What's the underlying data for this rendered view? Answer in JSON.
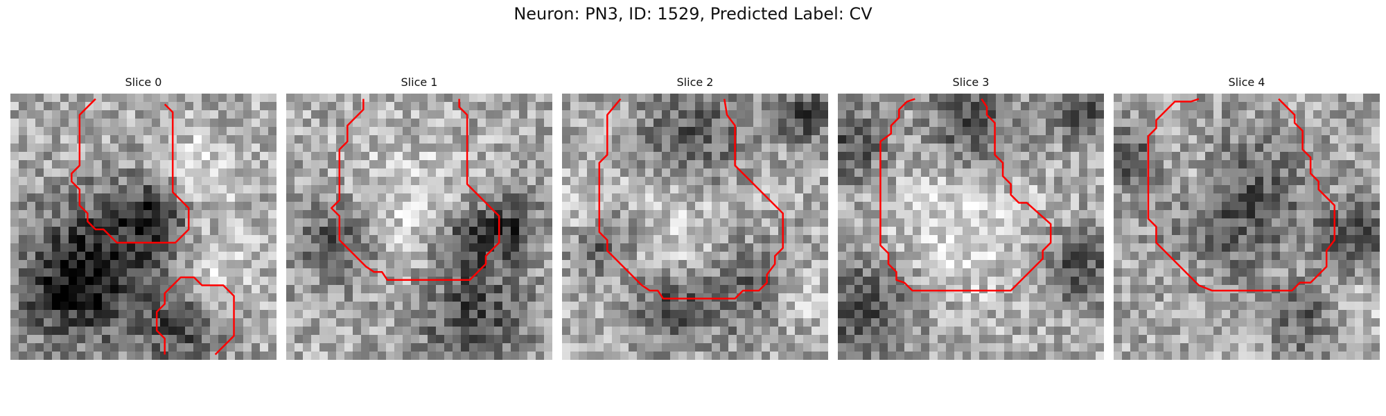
{
  "figure": {
    "title": "Neuron: PN3, ID: 1529, Predicted Label: CV"
  },
  "contour_color": "#ff0000",
  "panels": [
    {
      "title": "Slice 0",
      "seed": 11,
      "dark_blobs": [
        [
          0.35,
          0.6,
          0.18
        ],
        [
          0.22,
          0.75,
          0.15
        ],
        [
          0.55,
          0.45,
          0.1
        ],
        [
          0.65,
          0.88,
          0.12
        ]
      ],
      "light_blobs": [
        [
          0.75,
          0.7,
          0.12
        ],
        [
          0.7,
          0.3,
          0.12
        ]
      ],
      "contours": [
        [
          [
            0.32,
            0.02
          ],
          [
            0.26,
            0.08
          ],
          [
            0.26,
            0.27
          ],
          [
            0.23,
            0.3
          ],
          [
            0.23,
            0.33
          ],
          [
            0.26,
            0.36
          ],
          [
            0.26,
            0.42
          ],
          [
            0.29,
            0.45
          ],
          [
            0.29,
            0.48
          ],
          [
            0.32,
            0.51
          ],
          [
            0.35,
            0.51
          ],
          [
            0.4,
            0.56
          ],
          [
            0.62,
            0.56
          ],
          [
            0.67,
            0.51
          ],
          [
            0.67,
            0.43
          ],
          [
            0.61,
            0.37
          ],
          [
            0.61,
            0.07
          ],
          [
            0.58,
            0.04
          ]
        ],
        [
          [
            0.58,
            0.98
          ],
          [
            0.58,
            0.92
          ],
          [
            0.55,
            0.89
          ],
          [
            0.55,
            0.82
          ],
          [
            0.58,
            0.79
          ],
          [
            0.58,
            0.75
          ],
          [
            0.64,
            0.69
          ],
          [
            0.69,
            0.69
          ],
          [
            0.72,
            0.72
          ],
          [
            0.8,
            0.72
          ],
          [
            0.84,
            0.76
          ],
          [
            0.84,
            0.91
          ],
          [
            0.77,
            0.98
          ]
        ]
      ]
    },
    {
      "title": "Slice 1",
      "seed": 23,
      "dark_blobs": [
        [
          0.68,
          0.55,
          0.1
        ],
        [
          0.7,
          0.85,
          0.15
        ],
        [
          0.2,
          0.55,
          0.12
        ],
        [
          0.85,
          0.5,
          0.08
        ]
      ],
      "light_blobs": [
        [
          0.45,
          0.45,
          0.18
        ]
      ],
      "contours": [
        [
          [
            0.29,
            0.02
          ],
          [
            0.29,
            0.06
          ],
          [
            0.23,
            0.12
          ],
          [
            0.23,
            0.18
          ],
          [
            0.2,
            0.21
          ],
          [
            0.2,
            0.4
          ],
          [
            0.17,
            0.43
          ],
          [
            0.2,
            0.46
          ],
          [
            0.2,
            0.55
          ],
          [
            0.3,
            0.65
          ],
          [
            0.33,
            0.67
          ],
          [
            0.36,
            0.67
          ],
          [
            0.38,
            0.7
          ],
          [
            0.69,
            0.7
          ],
          [
            0.75,
            0.64
          ],
          [
            0.75,
            0.61
          ],
          [
            0.8,
            0.56
          ],
          [
            0.8,
            0.46
          ],
          [
            0.68,
            0.34
          ],
          [
            0.68,
            0.08
          ],
          [
            0.65,
            0.05
          ],
          [
            0.65,
            0.02
          ]
        ]
      ]
    },
    {
      "title": "Slice 2",
      "seed": 37,
      "dark_blobs": [
        [
          0.5,
          0.18,
          0.16
        ],
        [
          0.15,
          0.55,
          0.1
        ],
        [
          0.7,
          0.72,
          0.14
        ],
        [
          0.92,
          0.08,
          0.08
        ],
        [
          0.4,
          0.8,
          0.1
        ]
      ],
      "light_blobs": [
        [
          0.45,
          0.48,
          0.22
        ],
        [
          0.88,
          0.75,
          0.1
        ],
        [
          0.05,
          0.45,
          0.08
        ]
      ],
      "contours": [
        [
          [
            0.22,
            0.02
          ],
          [
            0.17,
            0.08
          ],
          [
            0.17,
            0.23
          ],
          [
            0.14,
            0.26
          ],
          [
            0.14,
            0.52
          ],
          [
            0.17,
            0.55
          ],
          [
            0.17,
            0.59
          ],
          [
            0.3,
            0.72
          ],
          [
            0.33,
            0.74
          ],
          [
            0.36,
            0.74
          ],
          [
            0.38,
            0.77
          ],
          [
            0.65,
            0.77
          ],
          [
            0.68,
            0.74
          ],
          [
            0.74,
            0.74
          ],
          [
            0.77,
            0.71
          ],
          [
            0.77,
            0.68
          ],
          [
            0.8,
            0.64
          ],
          [
            0.8,
            0.61
          ],
          [
            0.83,
            0.58
          ],
          [
            0.83,
            0.45
          ],
          [
            0.68,
            0.3
          ],
          [
            0.65,
            0.27
          ],
          [
            0.65,
            0.12
          ],
          [
            0.62,
            0.08
          ],
          [
            0.61,
            0.02
          ]
        ]
      ]
    },
    {
      "title": "Slice 3",
      "seed": 53,
      "dark_blobs": [
        [
          0.05,
          0.2,
          0.1
        ],
        [
          0.92,
          0.08,
          0.08
        ],
        [
          0.1,
          0.8,
          0.14
        ],
        [
          0.9,
          0.65,
          0.1
        ],
        [
          0.5,
          0.12,
          0.12
        ]
      ],
      "light_blobs": [
        [
          0.45,
          0.5,
          0.2
        ]
      ],
      "contours": [
        [
          [
            0.29,
            0.02
          ],
          [
            0.26,
            0.03
          ],
          [
            0.23,
            0.06
          ],
          [
            0.23,
            0.09
          ],
          [
            0.2,
            0.12
          ],
          [
            0.2,
            0.15
          ],
          [
            0.16,
            0.18
          ],
          [
            0.16,
            0.57
          ],
          [
            0.19,
            0.6
          ],
          [
            0.19,
            0.64
          ],
          [
            0.22,
            0.67
          ],
          [
            0.22,
            0.7
          ],
          [
            0.25,
            0.71
          ],
          [
            0.28,
            0.74
          ],
          [
            0.65,
            0.74
          ],
          [
            0.74,
            0.65
          ],
          [
            0.77,
            0.62
          ],
          [
            0.77,
            0.59
          ],
          [
            0.8,
            0.56
          ],
          [
            0.8,
            0.49
          ],
          [
            0.71,
            0.41
          ],
          [
            0.68,
            0.41
          ],
          [
            0.65,
            0.38
          ],
          [
            0.65,
            0.34
          ],
          [
            0.62,
            0.31
          ],
          [
            0.62,
            0.26
          ],
          [
            0.59,
            0.23
          ],
          [
            0.59,
            0.11
          ],
          [
            0.56,
            0.08
          ],
          [
            0.56,
            0.05
          ],
          [
            0.54,
            0.02
          ]
        ]
      ]
    },
    {
      "title": "Slice 4",
      "seed": 71,
      "dark_blobs": [
        [
          0.45,
          0.4,
          0.18
        ],
        [
          0.05,
          0.25,
          0.08
        ],
        [
          0.75,
          0.85,
          0.1
        ],
        [
          0.9,
          0.55,
          0.1
        ]
      ],
      "light_blobs": [
        [
          0.3,
          0.3,
          0.1
        ],
        [
          0.85,
          0.8,
          0.1
        ]
      ],
      "contours": [
        [
          [
            0.32,
            0.02
          ],
          [
            0.29,
            0.03
          ],
          [
            0.23,
            0.03
          ],
          [
            0.16,
            0.1
          ],
          [
            0.16,
            0.13
          ],
          [
            0.13,
            0.16
          ],
          [
            0.13,
            0.47
          ],
          [
            0.16,
            0.5
          ],
          [
            0.16,
            0.56
          ],
          [
            0.32,
            0.72
          ],
          [
            0.37,
            0.74
          ],
          [
            0.67,
            0.74
          ],
          [
            0.7,
            0.71
          ],
          [
            0.74,
            0.71
          ],
          [
            0.8,
            0.65
          ],
          [
            0.8,
            0.59
          ],
          [
            0.83,
            0.55
          ],
          [
            0.83,
            0.42
          ],
          [
            0.77,
            0.36
          ],
          [
            0.77,
            0.33
          ],
          [
            0.74,
            0.3
          ],
          [
            0.74,
            0.24
          ],
          [
            0.71,
            0.21
          ],
          [
            0.71,
            0.14
          ],
          [
            0.68,
            0.11
          ],
          [
            0.68,
            0.08
          ],
          [
            0.62,
            0.02
          ]
        ]
      ]
    }
  ]
}
